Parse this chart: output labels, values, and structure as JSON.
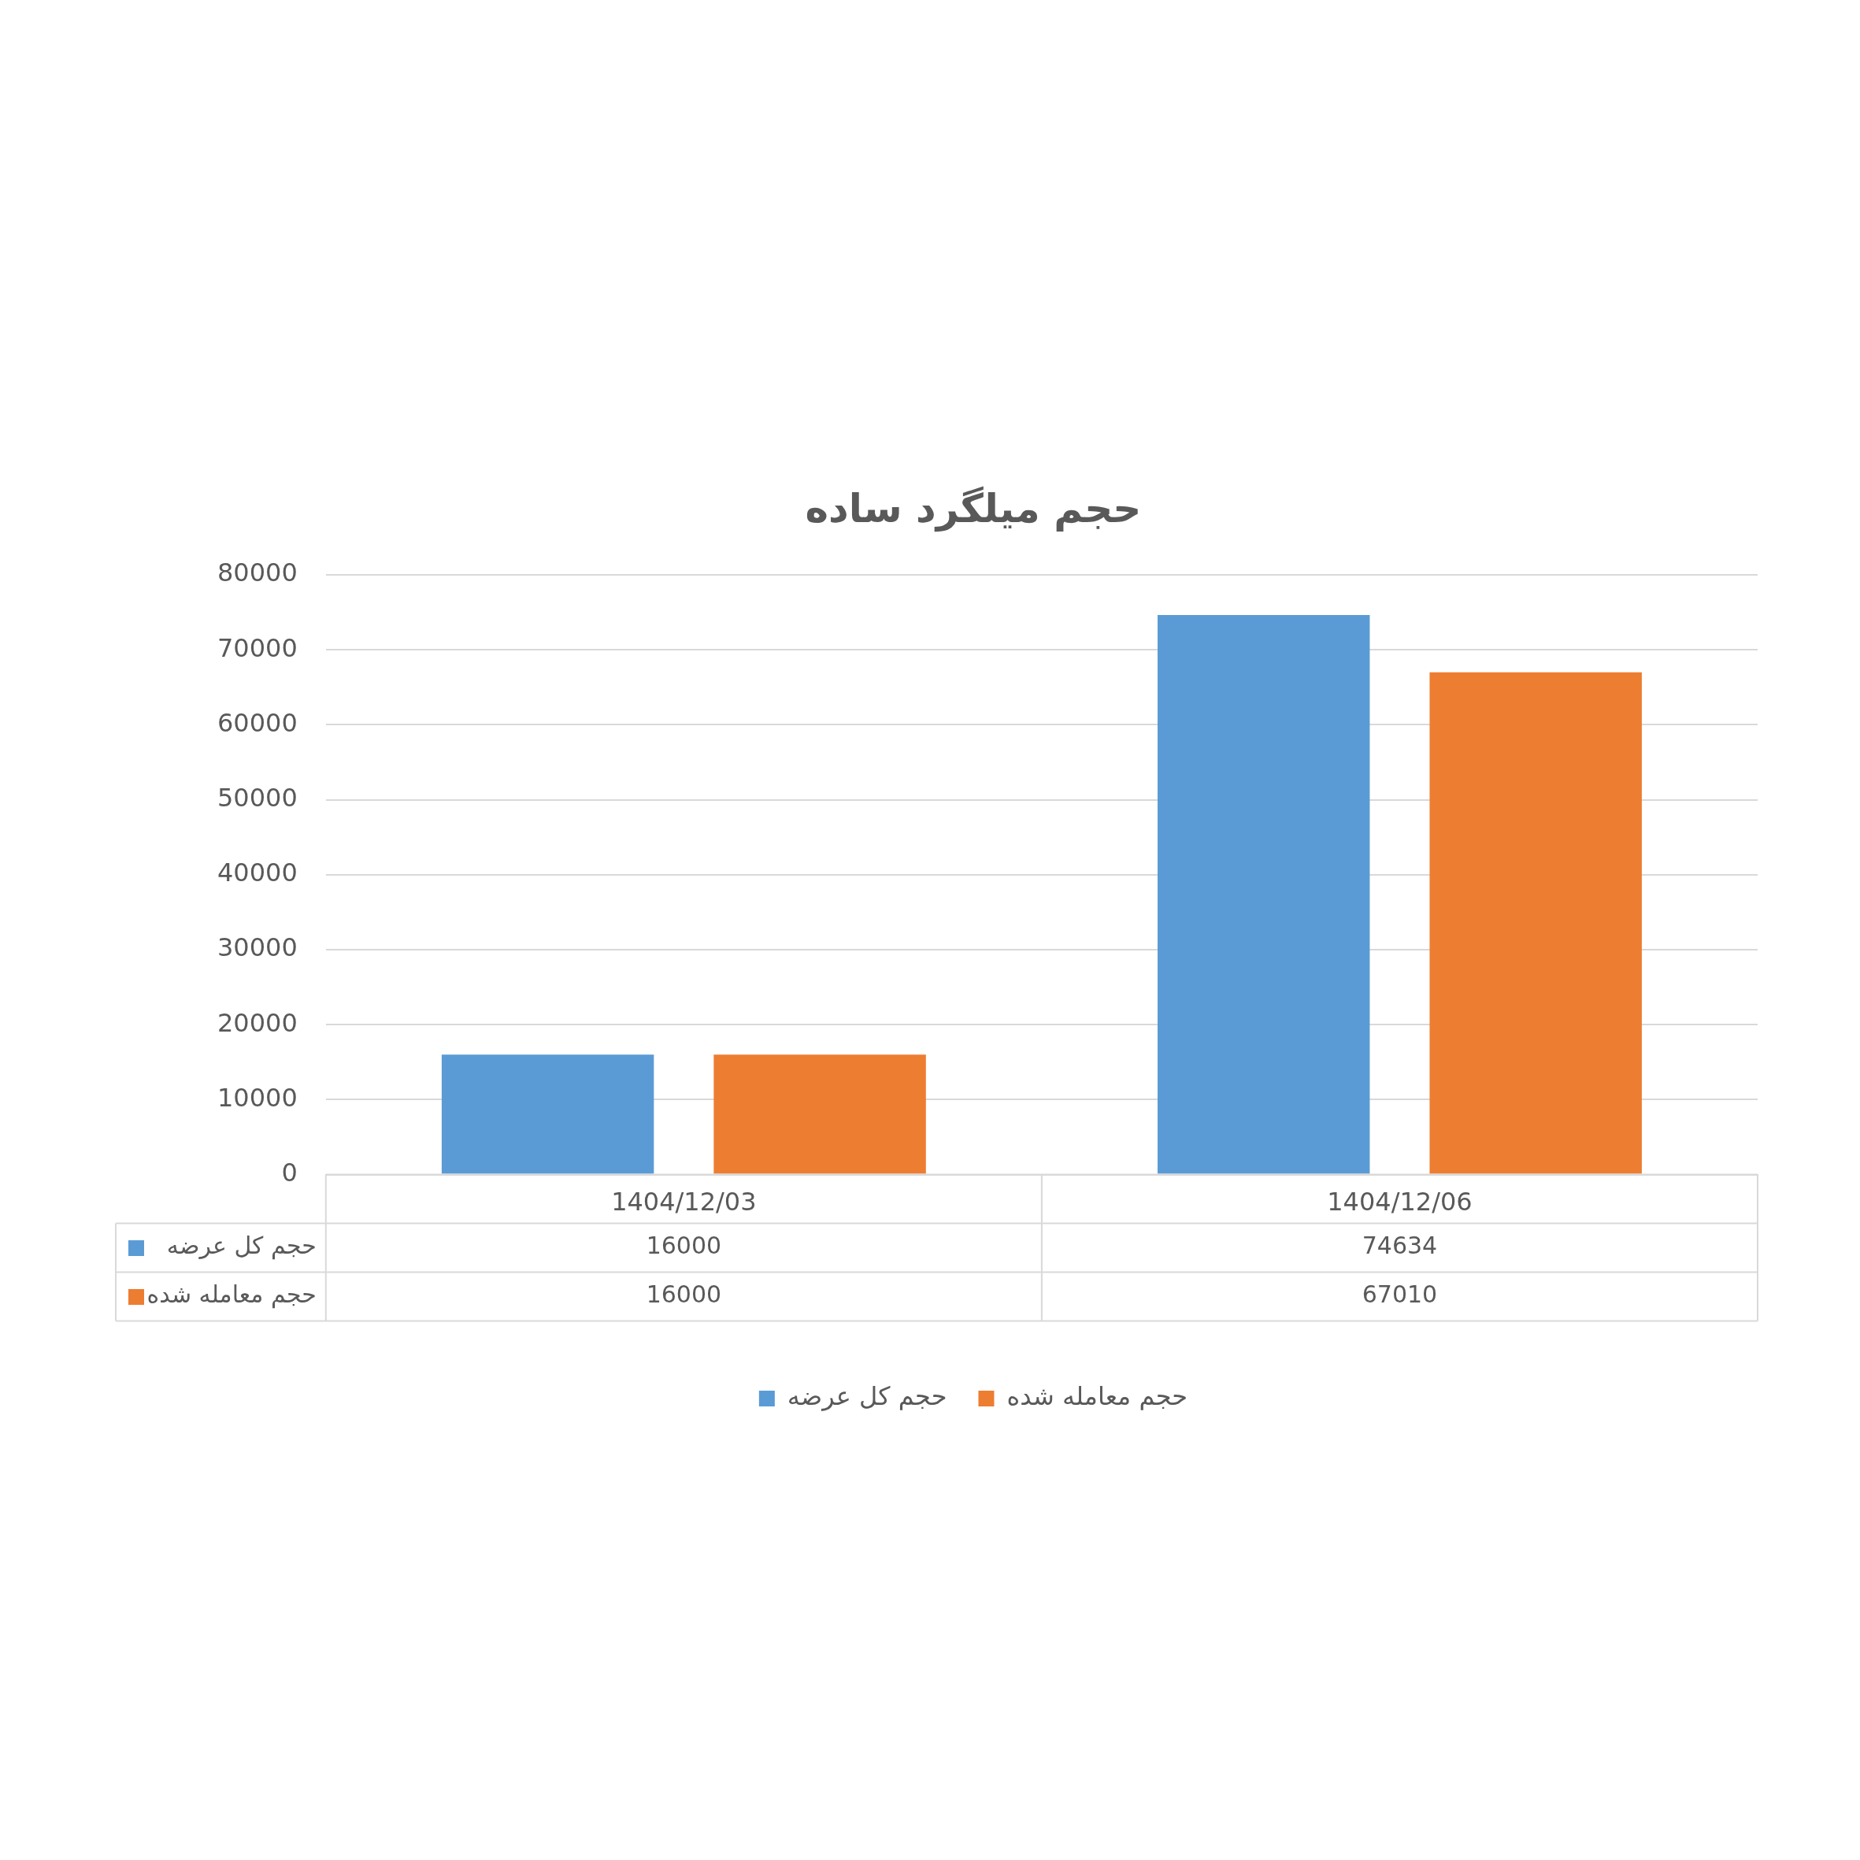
{
  "chart_data": {
    "type": "bar",
    "title": "حجم میلگرد ساده",
    "categories": [
      "1404/12/03",
      "1404/12/06"
    ],
    "series": [
      {
        "name": "حجم کل عرضه",
        "color": "#5b9bd5",
        "values": [
          16000,
          74634
        ]
      },
      {
        "name": "حجم معامله شده",
        "color": "#ed7d31",
        "values": [
          16000,
          67010
        ]
      }
    ],
    "ylim": [
      0,
      80000
    ],
    "yticks": [
      0,
      10000,
      20000,
      30000,
      40000,
      50000,
      60000,
      70000,
      80000
    ],
    "grid": "y",
    "legend": "bottom",
    "data_labels": true
  }
}
